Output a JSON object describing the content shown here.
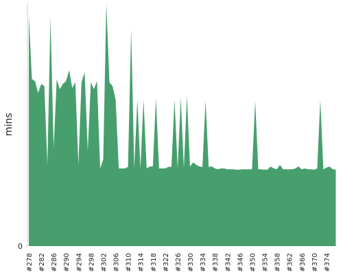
{
  "chart_data": {
    "type": "area",
    "y_label": "mins",
    "color": "#479f6e",
    "categories": [
      "#278",
      null,
      null,
      null,
      "#282",
      null,
      null,
      null,
      "#286",
      null,
      null,
      null,
      "#290",
      null,
      null,
      null,
      "#294",
      null,
      null,
      null,
      "#298",
      null,
      null,
      null,
      "#302",
      null,
      null,
      null,
      "#306",
      null,
      null,
      null,
      "#310",
      null,
      null,
      null,
      "#314",
      null,
      null,
      null,
      "#318",
      null,
      null,
      null,
      "#322",
      null,
      null,
      null,
      "#326",
      null,
      null,
      null,
      "#330",
      null,
      null,
      null,
      "#334",
      null,
      null,
      null,
      "#338",
      null,
      null,
      null,
      "#342",
      null,
      null,
      null,
      "#346",
      null,
      null,
      null,
      "#350",
      null,
      null,
      null,
      "#354",
      null,
      null,
      null,
      "#358",
      null,
      null,
      null,
      "#362",
      null,
      null,
      null,
      "#366",
      null,
      null,
      null,
      "#370",
      null,
      null,
      null,
      "#374",
      null,
      null,
      null
    ],
    "values": [
      57.1,
      41.3,
      40.8,
      37.9,
      40.1,
      39.6,
      20.1,
      56.6,
      24.3,
      41.3,
      38.8,
      40.1,
      40.8,
      43.5,
      39.1,
      40.5,
      20.1,
      40.5,
      43.0,
      23.5,
      40.5,
      38.8,
      40.8,
      19.2,
      21.4,
      60.0,
      40.5,
      39.6,
      36.2,
      19.2,
      19.2,
      19.2,
      19.6,
      53.7,
      19.2,
      36.2,
      19.2,
      36.2,
      19.2,
      19.7,
      19.7,
      36.6,
      19.2,
      19.2,
      19.2,
      19.6,
      19.6,
      36.2,
      19.2,
      36.7,
      19.2,
      37.1,
      19.7,
      20.7,
      20.1,
      19.7,
      19.6,
      36.0,
      19.6,
      19.7,
      19.2,
      19.0,
      19.2,
      19.2,
      19.0,
      19.0,
      19.0,
      18.9,
      18.9,
      19.0,
      19.0,
      19.0,
      19.0,
      35.9,
      19.0,
      19.0,
      18.9,
      18.9,
      19.7,
      19.2,
      19.0,
      20.1,
      19.0,
      19.0,
      19.0,
      19.0,
      19.2,
      19.7,
      19.0,
      19.2,
      19.0,
      19.0,
      18.9,
      19.2,
      36.2,
      19.0,
      19.4,
      19.7,
      19.0,
      18.9
    ],
    "ylim": [
      0,
      60
    ],
    "yticks": [
      0
    ]
  }
}
